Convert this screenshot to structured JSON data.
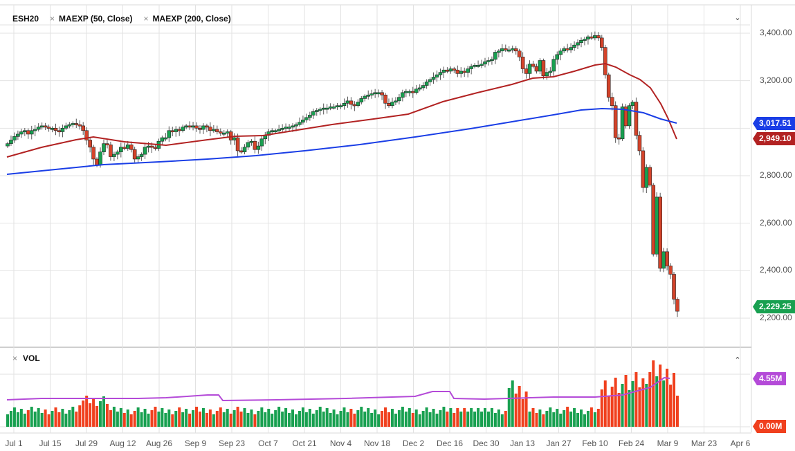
{
  "header": {
    "symbol": "ESH20",
    "indicators": [
      {
        "label": "MAEXP (50, Close)",
        "color": "#b22222"
      },
      {
        "label": "MAEXP (200, Close)",
        "color": "#1a3ee6"
      }
    ],
    "remove_icon": "×",
    "collapse_icon": "⌄"
  },
  "volume_panel": {
    "label": "VOL",
    "remove_icon": "×",
    "expand_icon": "⌃"
  },
  "price_tags": {
    "ma200": {
      "value": "3,017.51",
      "color": "#1a3ee6"
    },
    "ma50": {
      "value": "2,949.10",
      "color": "#b22222"
    },
    "last": {
      "value": "2,229.25",
      "color": "#18a050"
    },
    "vol_ma": {
      "value": "4.55M",
      "color": "#b44ad8"
    },
    "vol_last": {
      "value": "0.00M",
      "color": "#f0401e"
    }
  },
  "y_axis": {
    "labels": [
      "3,400.00",
      "3,200.00",
      "3,000.00",
      "2,800.00",
      "2,600.00",
      "2,400.00",
      "2,200.00"
    ]
  },
  "x_axis": {
    "labels": [
      "Jul 1",
      "Jul 15",
      "Jul 29",
      "Aug 12",
      "Aug 26",
      "Sep 9",
      "Sep 23",
      "Oct 7",
      "Oct 21",
      "Nov 4",
      "Nov 18",
      "Dec 2",
      "Dec 16",
      "Dec 30",
      "Jan 13",
      "Jan 27",
      "Feb 10",
      "Feb 24",
      "Mar 9",
      "Mar 23",
      "Apr 6"
    ]
  },
  "colors": {
    "up": "#18a050",
    "down": "#f0401e",
    "down_candle": "#d4432a",
    "grid": "#e2e2e2",
    "vol_ma": "#b44ad8"
  },
  "chart_data": {
    "type": "candlestick",
    "title": "ESH20",
    "ylim": [
      2150,
      3450
    ],
    "xlabel": "",
    "ylabel": "",
    "x_ticks": [
      "Jul 1",
      "Jul 15",
      "Jul 29",
      "Aug 12",
      "Aug 26",
      "Sep 9",
      "Sep 23",
      "Oct 7",
      "Oct 21",
      "Nov 4",
      "Nov 18",
      "Dec 2",
      "Dec 16",
      "Dec 30",
      "Jan 13",
      "Jan 27",
      "Feb 10",
      "Feb 24",
      "Mar 9",
      "Mar 23",
      "Apr 6"
    ],
    "y_ticks": [
      2200,
      2400,
      2600,
      2800,
      3000,
      3200,
      3400
    ],
    "close_approx": [
      2935,
      2950,
      2965,
      2975,
      2985,
      2990,
      2975,
      2990,
      2995,
      3005,
      3010,
      3005,
      3000,
      3000,
      2990,
      2985,
      3000,
      3010,
      3015,
      3020,
      3015,
      3010,
      2990,
      2950,
      2920,
      2870,
      2845,
      2900,
      2935,
      2930,
      2880,
      2890,
      2900,
      2920,
      2915,
      2930,
      2910,
      2870,
      2880,
      2890,
      2920,
      2925,
      2920,
      2915,
      2945,
      2960,
      2960,
      2990,
      2985,
      2995,
      2990,
      3005,
      3010,
      3005,
      3010,
      3000,
      2995,
      3010,
      3005,
      2990,
      2995,
      2985,
      2980,
      2980,
      2985,
      2950,
      2960,
      2905,
      2900,
      2920,
      2940,
      2945,
      2910,
      2925,
      2955,
      2970,
      2985,
      2990,
      2990,
      2995,
      3000,
      3005,
      3005,
      3010,
      3015,
      3025,
      3035,
      3045,
      3055,
      3070,
      3075,
      3080,
      3085,
      3085,
      3090,
      3090,
      3095,
      3095,
      3105,
      3115,
      3100,
      3095,
      3110,
      3125,
      3135,
      3140,
      3145,
      3150,
      3150,
      3140,
      3105,
      3095,
      3110,
      3115,
      3130,
      3150,
      3155,
      3155,
      3150,
      3165,
      3170,
      3180,
      3195,
      3205,
      3215,
      3225,
      3235,
      3245,
      3240,
      3250,
      3245,
      3230,
      3240,
      3235,
      3250,
      3260,
      3265,
      3265,
      3270,
      3280,
      3285,
      3290,
      3320,
      3325,
      3335,
      3330,
      3330,
      3335,
      3325,
      3300,
      3250,
      3230,
      3270,
      3260,
      3240,
      3285,
      3220,
      3235,
      3240,
      3290,
      3310,
      3325,
      3335,
      3330,
      3340,
      3350,
      3360,
      3370,
      3375,
      3385,
      3380,
      3390,
      3380,
      3340,
      3225,
      3130,
      3095,
      2960,
      2955,
      3090,
      3010,
      3095,
      3110,
      2970,
      2905,
      2750,
      2835,
      2760,
      2470,
      2710,
      2410,
      2480,
      2420,
      2385,
      2280,
      2229
    ],
    "series": [
      {
        "name": "MAEXP (50, Close)",
        "start": 2875,
        "peak": 3275,
        "end": 2949.1
      },
      {
        "name": "MAEXP (200, Close)",
        "start": 2800,
        "peak": 3080,
        "end": 3017.51
      }
    ],
    "volume": {
      "ylim_M": [
        0,
        6.5
      ],
      "last_ma_M": 4.55,
      "last_M": 0.0
    }
  }
}
